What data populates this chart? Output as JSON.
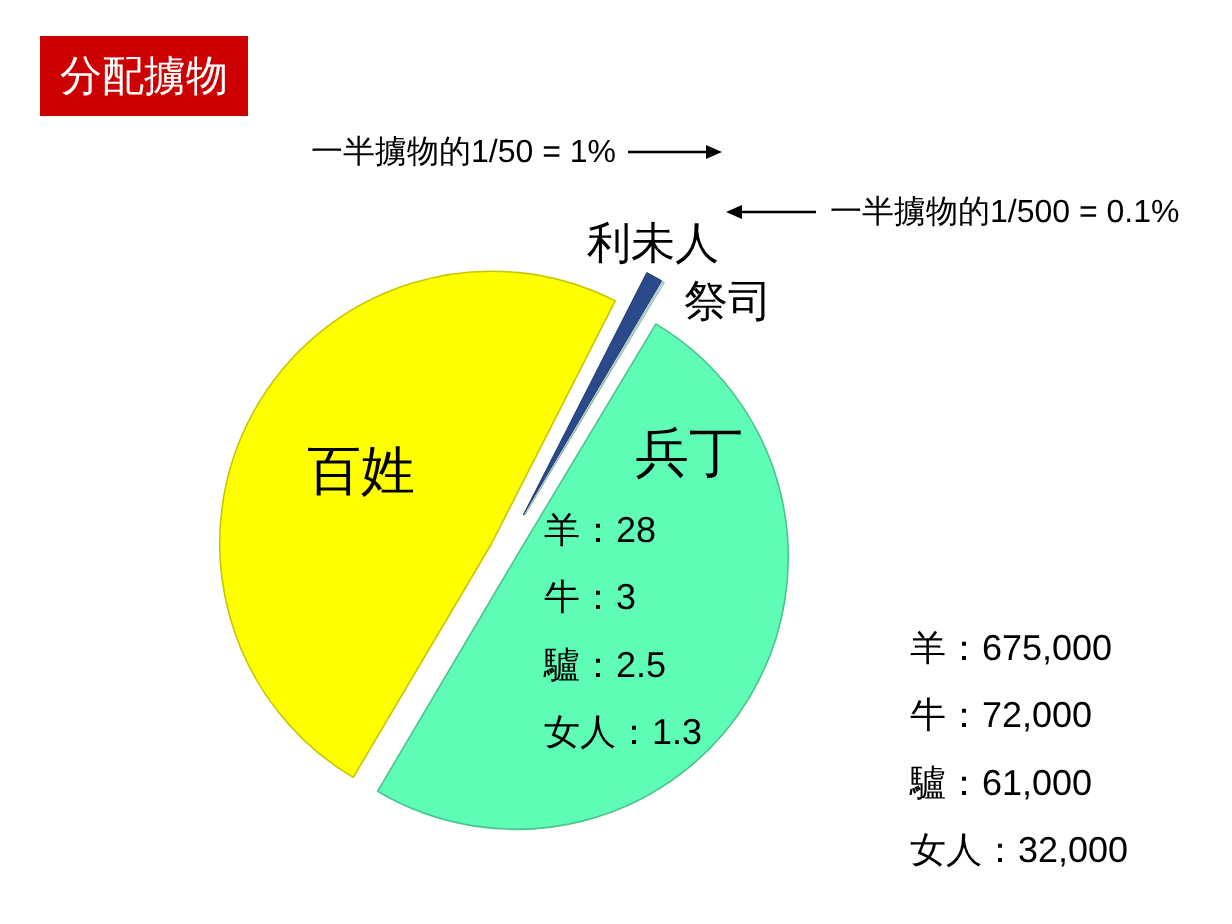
{
  "chart_data": {
    "type": "pie",
    "title": "分配擄物",
    "categories": [
      "利未人",
      "祭司",
      "兵丁",
      "百姓"
    ],
    "values": [
      1,
      0.1,
      49.9,
      49
    ],
    "colors": [
      "#2b4a8c",
      "#c4f2e4",
      "#5ffcb6",
      "#ffff00"
    ],
    "annotations": [
      "一半擄物的1/50 = 1%",
      "一半擄物的1/500 = 0.1%",
      "羊：28\n牛：3\n驢：2.5\n女人：1.3",
      "羊：675,000\n牛：72,000\n驢：61,000\n女人：32,000"
    ]
  }
}
